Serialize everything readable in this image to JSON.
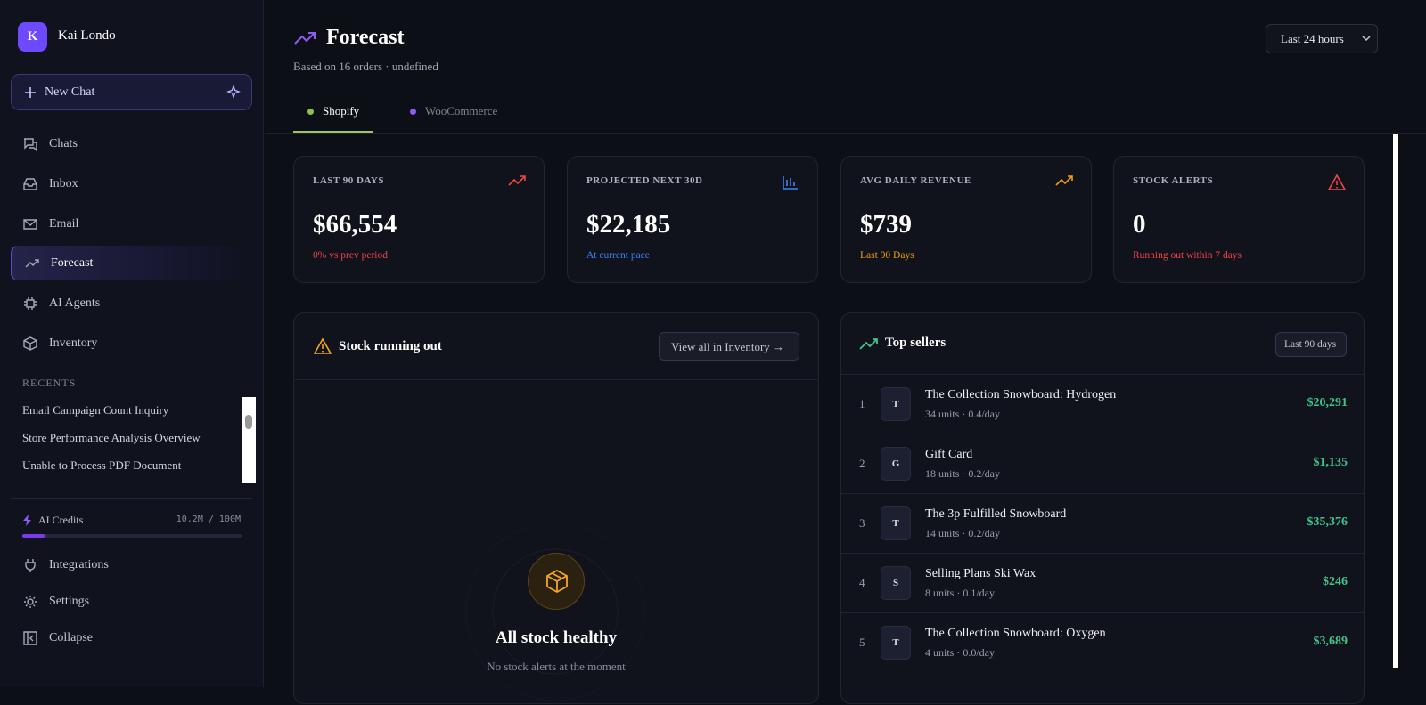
{
  "sidebar": {
    "user": {
      "initial": "K",
      "name": "Kai Londo"
    },
    "new_chat": "New Chat",
    "nav": [
      "Chats",
      "Inbox",
      "Email",
      "Forecast",
      "AI Agents",
      "Inventory"
    ],
    "recents_label": "RECENTS",
    "recents": [
      "Email Campaign Count Inquiry",
      "Store Performance Analysis Overview",
      "Unable to Process PDF Document"
    ],
    "credits": {
      "label": "AI Credits",
      "usage": "10.2M / 100M"
    },
    "footer": [
      "Integrations",
      "Settings",
      "Collapse"
    ]
  },
  "header": {
    "title": "Forecast",
    "subtitle": "Based on 16 orders · undefined",
    "range": "Last 24 hours"
  },
  "tabs": [
    "Shopify",
    "WooCommerce"
  ],
  "kpis": [
    {
      "label": "LAST 90 DAYS",
      "value": "$66,554",
      "note": "0% vs prev period"
    },
    {
      "label": "PROJECTED NEXT 30D",
      "value": "$22,185",
      "note": "At current pace"
    },
    {
      "label": "AVG DAILY REVENUE",
      "value": "$739",
      "note": "Last 90 Days"
    },
    {
      "label": "STOCK ALERTS",
      "value": "0",
      "note": "Running out within 7 days"
    }
  ],
  "stock": {
    "title": "Stock running out",
    "button": "View all in Inventory →",
    "empty_title": "All stock healthy",
    "empty_note": "No stock alerts at the moment"
  },
  "top_sellers": {
    "title": "Top sellers",
    "badge": "Last 90 days",
    "rows": [
      {
        "rank": "1",
        "initial": "T",
        "name": "The Collection Snowboard: Hydrogen",
        "meta": "34 units · 0.4/day",
        "revenue": "$20,291"
      },
      {
        "rank": "2",
        "initial": "G",
        "name": "Gift Card",
        "meta": "18 units · 0.2/day",
        "revenue": "$1,135"
      },
      {
        "rank": "3",
        "initial": "T",
        "name": "The 3p Fulfilled Snowboard",
        "meta": "14 units · 0.2/day",
        "revenue": "$35,376"
      },
      {
        "rank": "4",
        "initial": "S",
        "name": "Selling Plans Ski Wax",
        "meta": "8 units · 0.1/day",
        "revenue": "$246"
      },
      {
        "rank": "5",
        "initial": "T",
        "name": "The Collection Snowboard: Oxygen",
        "meta": "4 units · 0.0/day",
        "revenue": "$3,689"
      }
    ]
  }
}
